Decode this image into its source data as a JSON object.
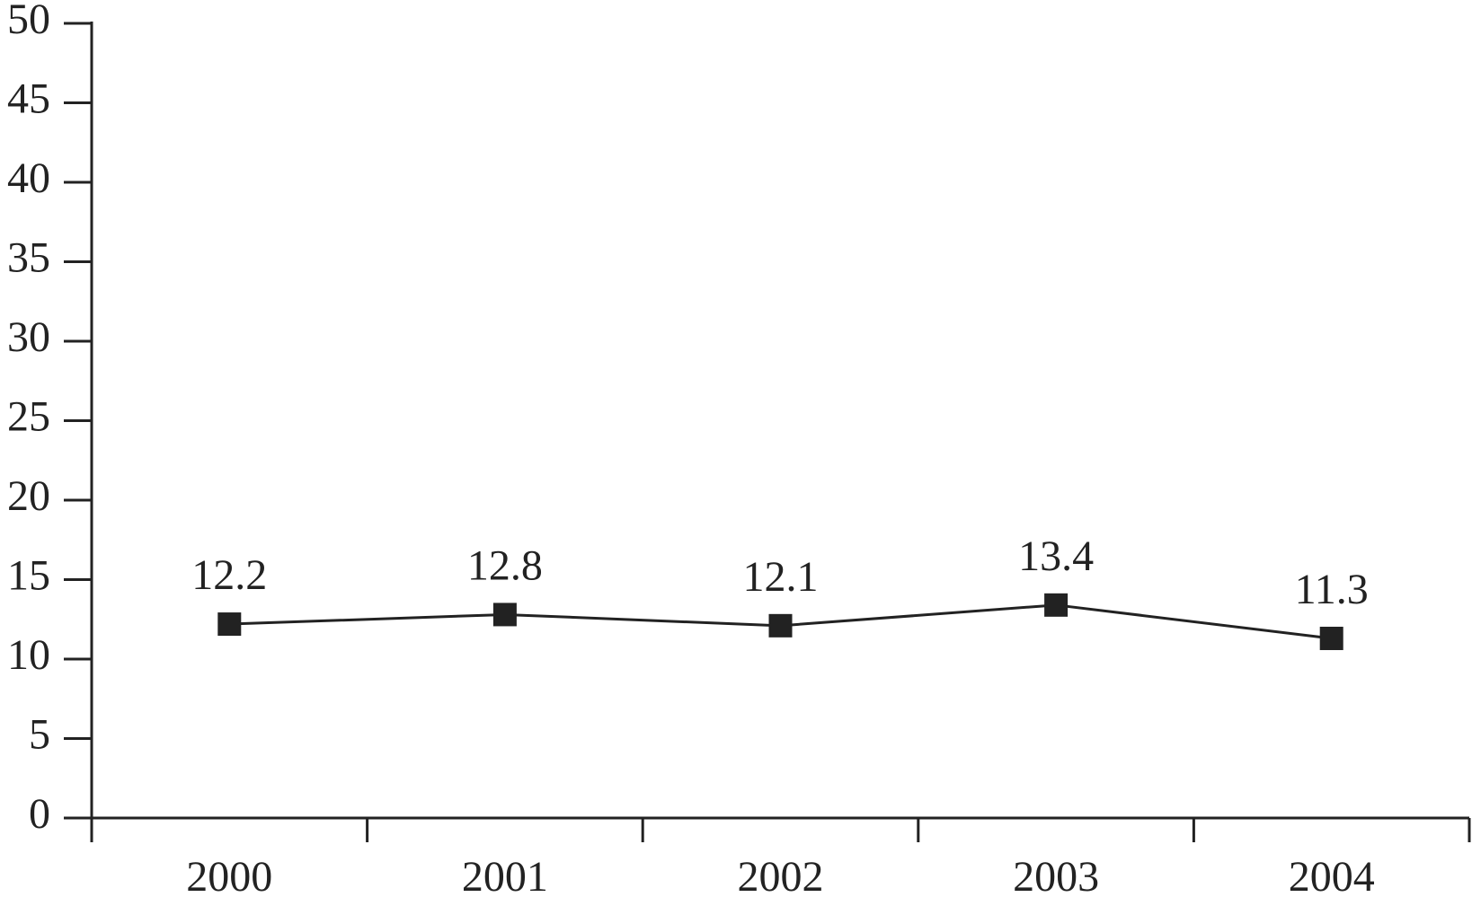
{
  "chart_data": {
    "type": "line",
    "categories": [
      "2000",
      "2001",
      "2002",
      "2003",
      "2004"
    ],
    "values": [
      12.2,
      12.8,
      12.1,
      13.4,
      11.3
    ],
    "color": "#222222",
    "ylim": [
      0,
      50
    ],
    "yticks": [
      0,
      5,
      10,
      15,
      20,
      25,
      30,
      35,
      40,
      45,
      50
    ],
    "grid": false
  }
}
